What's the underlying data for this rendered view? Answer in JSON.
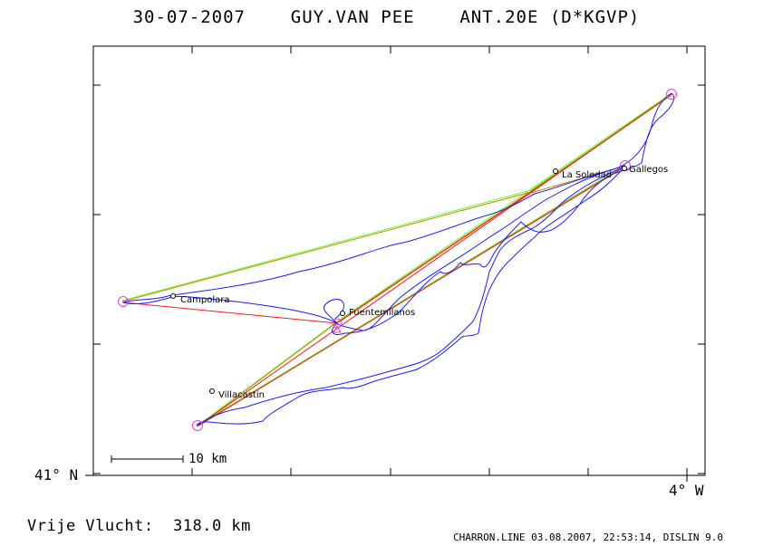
{
  "header": {
    "title": "30-07-2007    GUY.VAN PEE    ANT.20E (D*KGVP)"
  },
  "axes": {
    "lat_label": "41° N",
    "lon_label": "4° W"
  },
  "scale_bar": {
    "label": "10 km"
  },
  "footer": {
    "distance": "Vrije Vlucht:  318.0 km",
    "credit": "CHARRON.LINE 03.08.2007, 22:53:14, DISLIN 9.0"
  },
  "places": {
    "la_soledad": "La Soledad",
    "gallegos": "Gallegos",
    "campolara": "Campolara",
    "fuentemilanos": "Fuentemilanos",
    "villacastin": "Villacastin"
  },
  "colors": {
    "track": "#1a1aff",
    "turnpoint": "#e040e0",
    "green_line": "#66ff33",
    "red_line": "#ff1a1a",
    "orange_line": "#cc8800",
    "frame": "#000000"
  },
  "icons": {
    "turnpoint": "circle-icon",
    "place": "circle-icon",
    "start": "triangle-icon"
  }
}
